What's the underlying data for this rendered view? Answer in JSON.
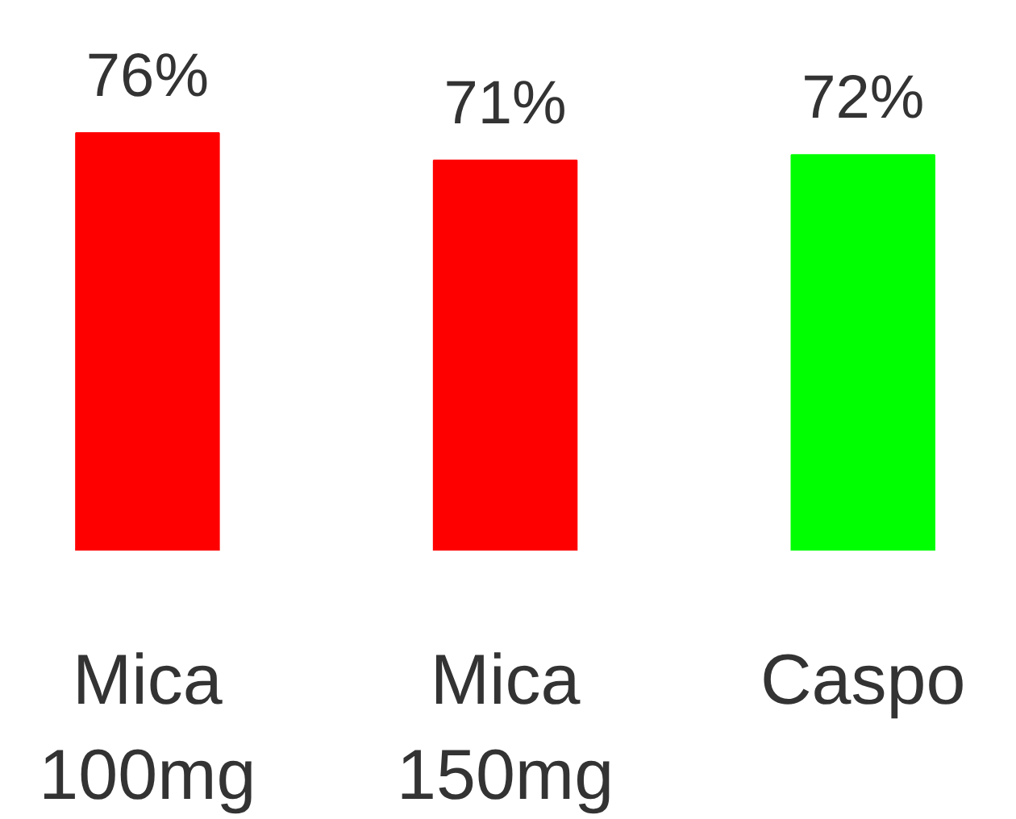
{
  "chart_data": {
    "type": "bar",
    "categories": [
      "Mica 100mg",
      "Mica 150mg",
      "Caspo"
    ],
    "values": [
      76,
      71,
      72
    ],
    "colors": [
      "#ff0000",
      "#ff0000",
      "#00ff00"
    ],
    "value_labels": [
      "76%",
      "71%",
      "72%"
    ],
    "tick_labels": "x",
    "grid": false
  }
}
